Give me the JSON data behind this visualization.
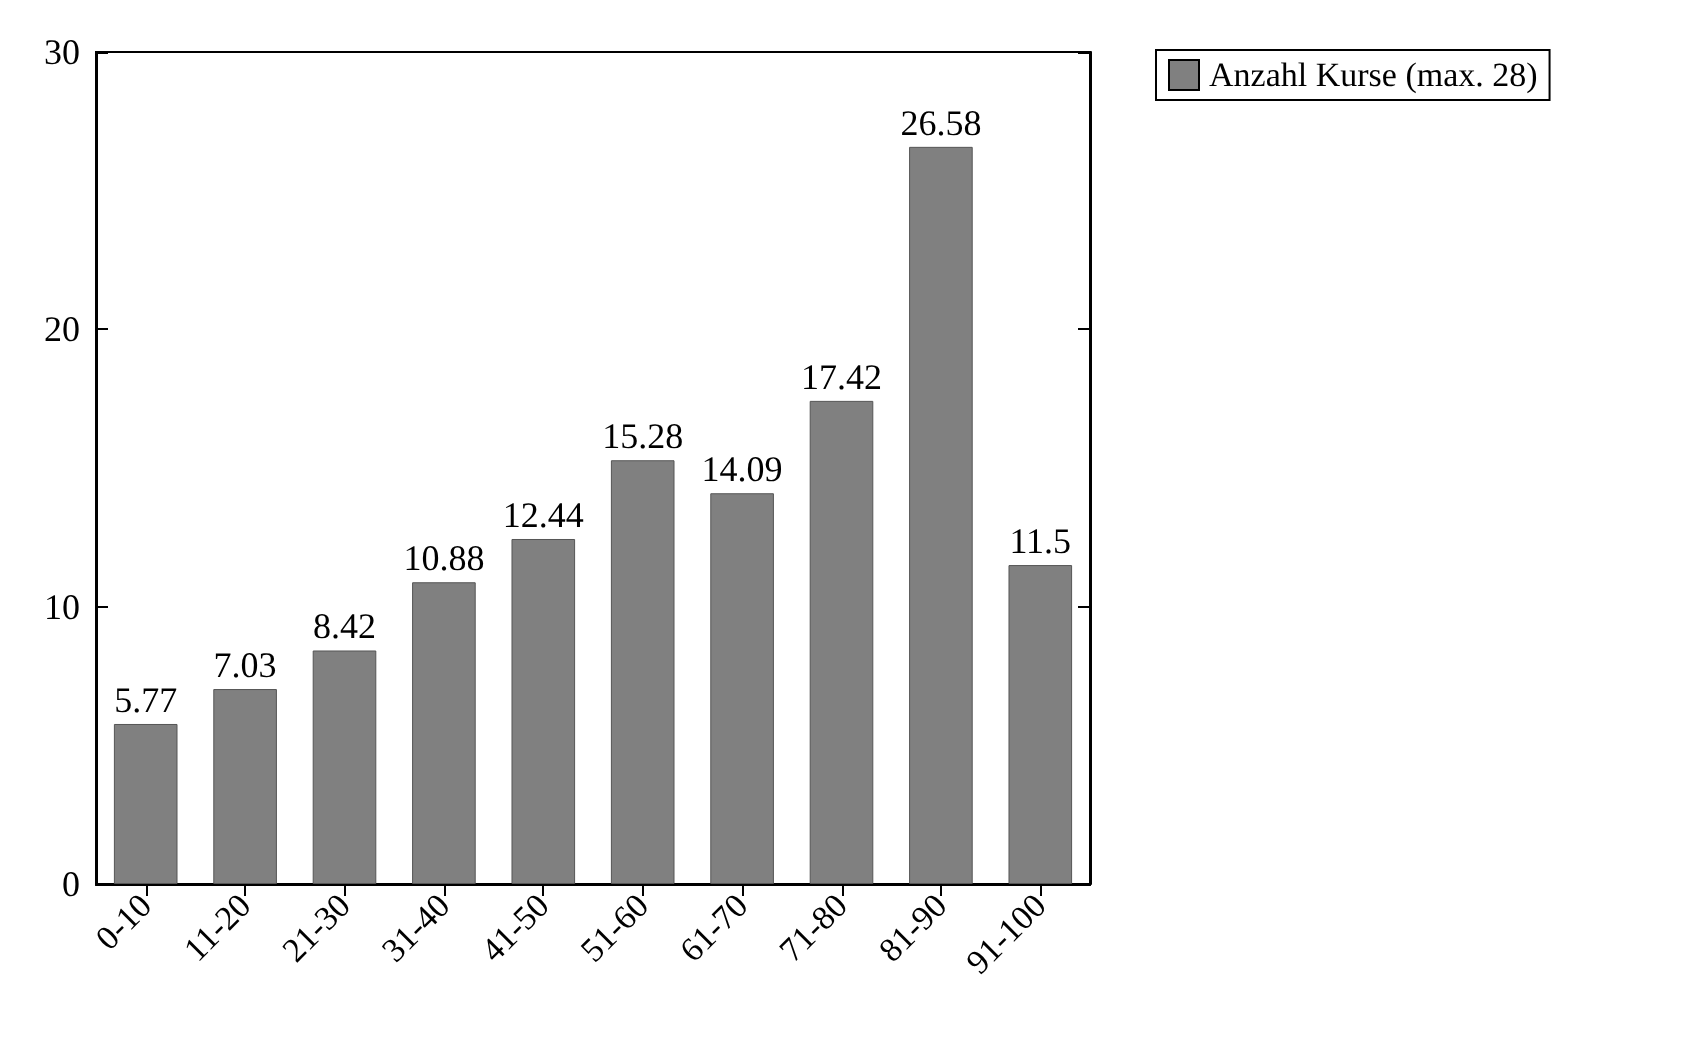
{
  "chart_data": {
    "type": "bar",
    "categories": [
      "0-10",
      "11-20",
      "21-30",
      "31-40",
      "41-50",
      "51-60",
      "61-70",
      "71-80",
      "81-90",
      "91-100"
    ],
    "series": [
      {
        "name": "Anzahl Kurse (max. 28)",
        "color": "#808080",
        "values": [
          5.77,
          7.03,
          8.42,
          10.88,
          12.44,
          15.28,
          14.09,
          17.42,
          26.58,
          11.5
        ]
      }
    ],
    "ylim": [
      0,
      30
    ],
    "yticks": [
      0,
      10,
      20,
      30
    ],
    "data_labels": true,
    "grid": false,
    "legend": "top right"
  }
}
